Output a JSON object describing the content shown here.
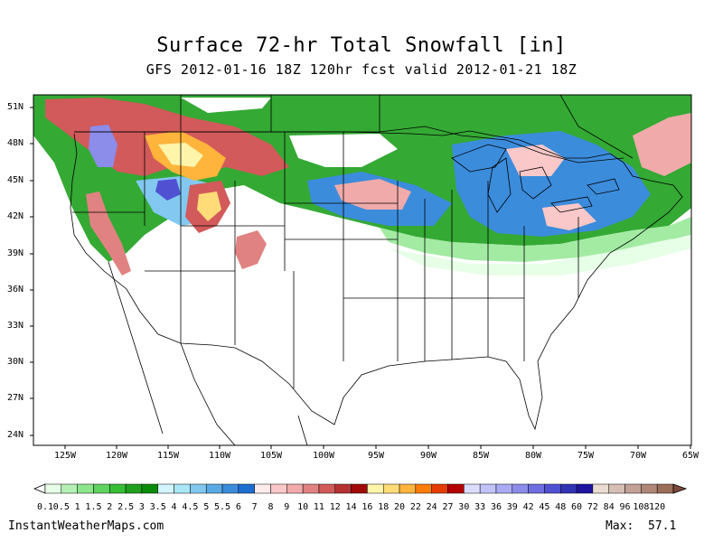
{
  "title": "Surface 72-hr Total Snowfall [in]",
  "subtitle": "GFS 2012-01-16 18Z 120hr fcst valid 2012-01-21 18Z",
  "lat_labels": [
    "51N",
    "48N",
    "45N",
    "42N",
    "39N",
    "36N",
    "33N",
    "30N",
    "27N",
    "24N"
  ],
  "lon_labels": [
    "125W",
    "120W",
    "115W",
    "110W",
    "105W",
    "100W",
    "95W",
    "90W",
    "85W",
    "80W",
    "75W",
    "70W",
    "65W"
  ],
  "legend": {
    "labels": [
      "0.1",
      "0.5",
      "1",
      "1.5",
      "2",
      "2.5",
      "3",
      "3.5",
      "4",
      "4.5",
      "5",
      "5.5",
      "6",
      "7",
      "8",
      "9",
      "10",
      "11",
      "12",
      "14",
      "16",
      "18",
      "20",
      "22",
      "24",
      "27",
      "30",
      "33",
      "36",
      "39",
      "42",
      "45",
      "48",
      "60",
      "72",
      "84",
      "96",
      "108",
      "120"
    ],
    "colors": [
      "#e6ffe6",
      "#b4f0b4",
      "#8ce68c",
      "#5fd25f",
      "#37be37",
      "#1ea01e",
      "#0a8c0a",
      "#d2f5ff",
      "#aae6f5",
      "#82c8f0",
      "#5aaae6",
      "#3c8cdc",
      "#1e6ed2",
      "#ffebeb",
      "#fac8c8",
      "#f0aaaa",
      "#e18282",
      "#d25a5a",
      "#b43232",
      "#a00a0a",
      "#fff5aa",
      "#ffdc78",
      "#ffb43c",
      "#ff7d0a",
      "#e63c00",
      "#b40000",
      "#dcdcff",
      "#c3c3fa",
      "#aaaaf5",
      "#8c8ceb",
      "#6e6ee1",
      "#5050d2",
      "#3232b4",
      "#1e14a0",
      "#ebdcd2",
      "#d7beb4",
      "#c3a096",
      "#af8778",
      "#9b6e5a"
    ]
  },
  "site": "InstantWeatherMaps.com",
  "max_label": "Max:",
  "max_value": "57.1"
}
